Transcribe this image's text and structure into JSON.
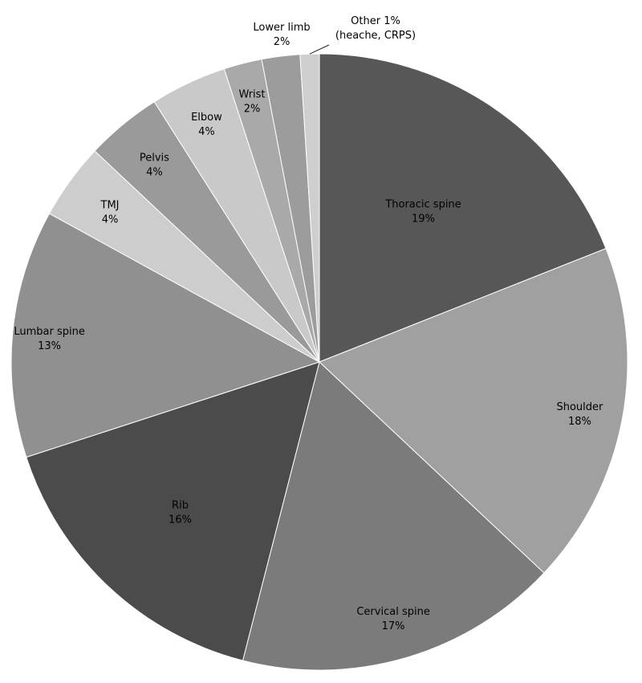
{
  "chart_data": {
    "type": "pie",
    "start_angle_deg": 0,
    "direction": "clockwise",
    "slices": [
      {
        "label": "Thoracic spine",
        "value": 19,
        "value_label": "19%",
        "color": "#575757"
      },
      {
        "label": "Shoulder",
        "value": 18,
        "value_label": "18%",
        "color": "#a0a0a0"
      },
      {
        "label": "Cervical spine",
        "value": 17,
        "value_label": "17%",
        "color": "#7b7b7b"
      },
      {
        "label": "Rib",
        "value": 16,
        "value_label": "16%",
        "color": "#4b4b4b"
      },
      {
        "label": "Lumbar spine",
        "value": 13,
        "value_label": "13%",
        "color": "#909090"
      },
      {
        "label": "TMJ",
        "value": 4,
        "value_label": "4%",
        "color": "#cdcdcd"
      },
      {
        "label": "Pelvis",
        "value": 4,
        "value_label": "4%",
        "color": "#9a9a9a"
      },
      {
        "label": "Elbow",
        "value": 4,
        "value_label": "4%",
        "color": "#c9c9c9"
      },
      {
        "label": "Wrist",
        "value": 2,
        "value_label": "2%",
        "color": "#a9a9a9"
      },
      {
        "label": "Lower limb",
        "value": 2,
        "value_label": "2%",
        "color": "#9c9c9c"
      },
      {
        "label": "Other 1%",
        "value": 1,
        "value_label": "(heache, CRPS)",
        "color": "#cfcfcf"
      }
    ]
  }
}
